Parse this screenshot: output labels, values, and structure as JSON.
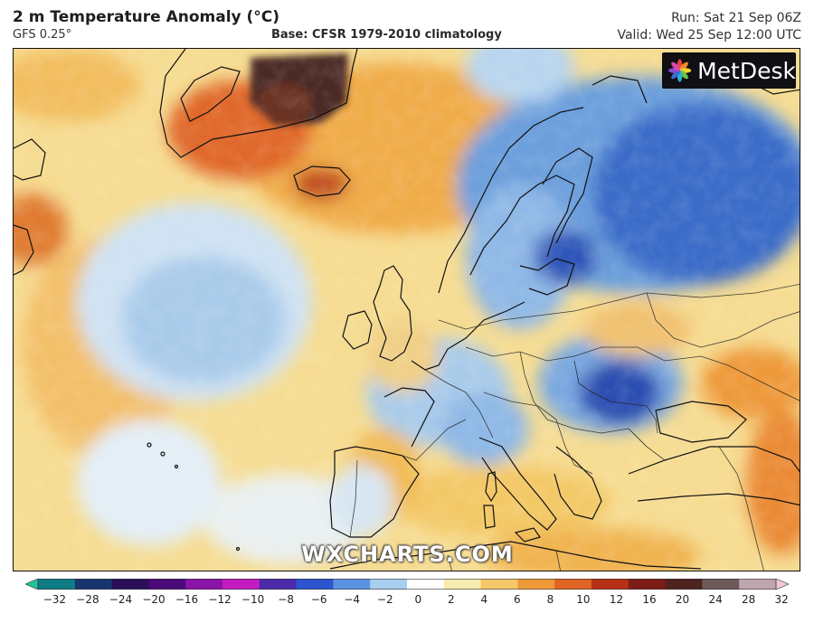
{
  "header": {
    "title": "2 m Temperature Anomaly (°C)",
    "model": "GFS 0.25°",
    "base": "Base: CFSR 1979-2010 climatology",
    "run": "Run: Sat 21 Sep 06Z",
    "valid": "Valid: Wed 25 Sep 12:00 UTC"
  },
  "logo": {
    "text": "MetDesk",
    "icon": "petal-logo-icon"
  },
  "watermark": "WXCHARTS.COM",
  "colorbar": {
    "ticks": [
      "−32",
      "−28",
      "−24",
      "−20",
      "−16",
      "−12",
      "−10",
      "−8",
      "−6",
      "−4",
      "−2",
      "0",
      "2",
      "4",
      "6",
      "8",
      "10",
      "12",
      "16",
      "20",
      "24",
      "28",
      "32"
    ],
    "colors": [
      "#1fc29a",
      "#0f7d87",
      "#18356e",
      "#2a0f58",
      "#4a0a7a",
      "#8a13a8",
      "#c41bc1",
      "#4a2aa8",
      "#2c55cf",
      "#5a93e2",
      "#a8cff0",
      "#ffffff",
      "#f7ebb0",
      "#f4c768",
      "#ee9a3a",
      "#e06424",
      "#b53016",
      "#7e1c17",
      "#4e2320",
      "#6e5a5a",
      "#bfa6ac",
      "#f3c8d6"
    ]
  }
}
